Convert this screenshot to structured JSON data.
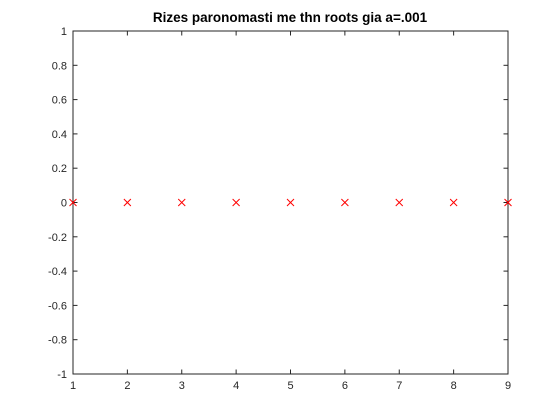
{
  "chart_data": {
    "type": "scatter",
    "title": "Rizes paronomasti me thn roots gia a=.001",
    "xlabel": "",
    "ylabel": "",
    "xlim": [
      1,
      9
    ],
    "ylim": [
      -1,
      1
    ],
    "xticks": [
      "1",
      "2",
      "3",
      "4",
      "5",
      "6",
      "7",
      "8",
      "9"
    ],
    "yticks": [
      "-1",
      "-0.8",
      "-0.6",
      "-0.4",
      "-0.2",
      "0",
      "0.2",
      "0.4",
      "0.6",
      "0.8",
      "1"
    ],
    "grid": false,
    "marker": "x",
    "series": [
      {
        "color": "#ff0000",
        "x": [
          1,
          2,
          3,
          4,
          5,
          6,
          7,
          8,
          9
        ],
        "y": [
          0,
          0,
          0,
          0,
          0,
          0,
          0,
          0,
          0
        ]
      }
    ]
  }
}
